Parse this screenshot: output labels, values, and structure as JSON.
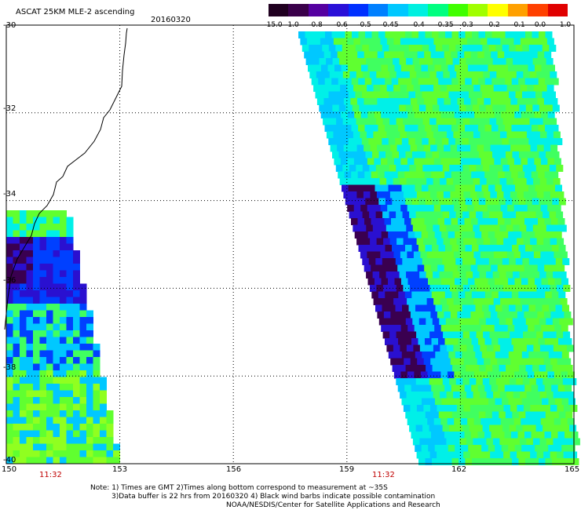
{
  "header": {
    "title": "ASCAT 25KM MLE-2 ascending",
    "date": "20160320"
  },
  "colorbar": {
    "labels": [
      "-15.0",
      "-1.0",
      "-0.8",
      "-0.6",
      "-0.5",
      "-0.45",
      "-0.4",
      "-0.35",
      "-0.3",
      "-0.2",
      "-0.1",
      "0.0",
      "1.0"
    ],
    "colors": [
      "#200020",
      "#3a004a",
      "#5500a0",
      "#2a10d8",
      "#0030ff",
      "#0080ff",
      "#00c8ff",
      "#00f0e0",
      "#00ff80",
      "#40ff00",
      "#a0ff00",
      "#ffff00",
      "#ffa000",
      "#ff4000",
      "#e00000"
    ]
  },
  "axes": {
    "lat_labels": [
      "-30",
      "-32",
      "-34",
      "-36",
      "-38",
      "-40"
    ],
    "lon_labels": [
      "150",
      "153",
      "156",
      "159",
      "162",
      "165"
    ]
  },
  "map": {
    "lon_range": [
      150,
      165
    ],
    "lat_range": [
      -30,
      -40
    ],
    "swath_colors": [
      "#3a0050",
      "#2a10d0",
      "#0040ff",
      "#00c8ff",
      "#00f0e8",
      "#40ff60",
      "#60ff30",
      "#90ff20"
    ]
  },
  "pass_times": [
    "11:32",
    "11:32"
  ],
  "notes": [
    "Note: 1) Times are GMT 2)Times along bottom correspond to measurement at ~35S",
    "3)Data buffer is 22 hrs from 20160320 4) Black wind barbs indicate possible contamination",
    "NOAA/NESDIS/Center for Satellite Applications and Research"
  ]
}
